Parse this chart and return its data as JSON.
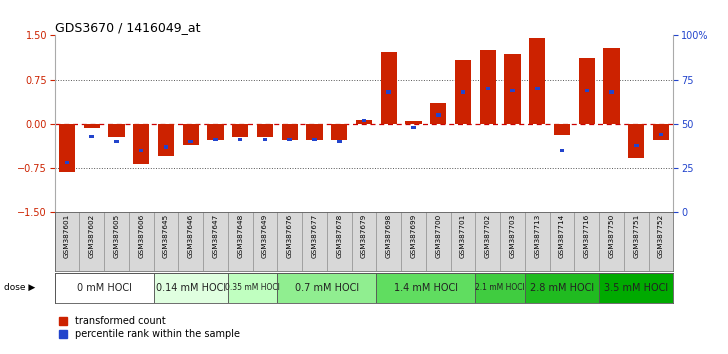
{
  "title": "GDS3670 / 1416049_at",
  "samples": [
    "GSM387601",
    "GSM387602",
    "GSM387605",
    "GSM387606",
    "GSM387645",
    "GSM387646",
    "GSM387647",
    "GSM387648",
    "GSM387649",
    "GSM387676",
    "GSM387677",
    "GSM387678",
    "GSM387679",
    "GSM387698",
    "GSM387699",
    "GSM387700",
    "GSM387701",
    "GSM387702",
    "GSM387703",
    "GSM387713",
    "GSM387714",
    "GSM387716",
    "GSM387750",
    "GSM387751",
    "GSM387752"
  ],
  "transformed_count": [
    -0.82,
    -0.07,
    -0.22,
    -0.68,
    -0.55,
    -0.35,
    -0.28,
    -0.22,
    -0.22,
    -0.28,
    -0.28,
    -0.28,
    0.07,
    1.22,
    0.05,
    0.35,
    1.08,
    1.25,
    1.18,
    1.45,
    -0.18,
    1.12,
    1.28,
    -0.58,
    -0.28
  ],
  "percentile_rank": [
    28,
    43,
    40,
    35,
    37,
    40,
    41,
    41,
    41,
    41,
    41,
    40,
    52,
    68,
    48,
    55,
    68,
    70,
    69,
    70,
    35,
    69,
    68,
    38,
    44
  ],
  "dose_groups": [
    {
      "label": "0 mM HOCl",
      "start": 0,
      "end": 4,
      "color": "#ffffff"
    },
    {
      "label": "0.14 mM HOCl",
      "start": 4,
      "end": 7,
      "color": "#e0ffe0"
    },
    {
      "label": "0.35 mM HOCl",
      "start": 7,
      "end": 9,
      "color": "#c0ffc0"
    },
    {
      "label": "0.7 mM HOCl",
      "start": 9,
      "end": 13,
      "color": "#90ee90"
    },
    {
      "label": "1.4 mM HOCl",
      "start": 13,
      "end": 17,
      "color": "#60dd60"
    },
    {
      "label": "2.1 mM HOCl",
      "start": 17,
      "end": 19,
      "color": "#40cc40"
    },
    {
      "label": "2.8 mM HOCl",
      "start": 19,
      "end": 22,
      "color": "#20bb20"
    },
    {
      "label": "3.5 mM HOCl",
      "start": 22,
      "end": 25,
      "color": "#00aa00"
    }
  ],
  "ylim": [
    -1.5,
    1.5
  ],
  "yticks_left": [
    -1.5,
    -0.75,
    0.0,
    0.75,
    1.5
  ],
  "right_yticks_pct": [
    0,
    25,
    50,
    75,
    100
  ],
  "bar_color_red": "#cc2200",
  "bar_color_blue": "#2244cc",
  "hline_color": "#cc0000",
  "dotted_color": "#555555",
  "bg_color": "#ffffff",
  "cell_bg": "#d8d8d8",
  "cell_border": "#888888"
}
